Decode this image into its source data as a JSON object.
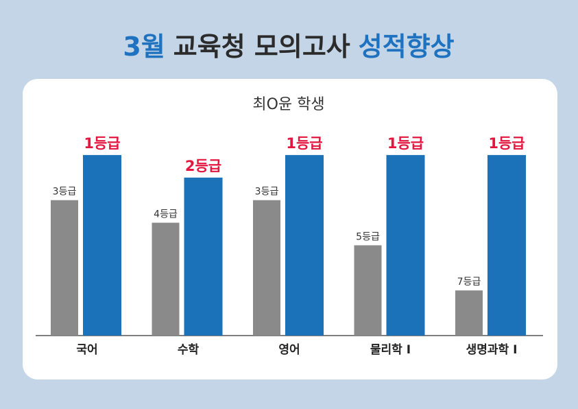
{
  "chart_data": {
    "type": "bar",
    "title": [
      {
        "text": "3월",
        "color": "#1f72bf"
      },
      {
        "text": "교육청 모의고사",
        "color": "#2b2b2b"
      },
      {
        "text": "성적향상",
        "color": "#1f72bf"
      }
    ],
    "subtitle": "최O윤 학생",
    "categories": [
      "국어",
      "수학",
      "영어",
      "물리학 I",
      "생명과학 I"
    ],
    "series": [
      {
        "color": "#8a8a8a",
        "values": [
          3,
          4,
          3,
          5,
          7
        ],
        "value_labels": [
          "3등급",
          "4등급",
          "3등급",
          "5등급",
          "7등급"
        ],
        "label_color": "#333333"
      },
      {
        "color": "#1b72b9",
        "values": [
          1,
          2,
          1,
          1,
          1
        ],
        "value_labels": [
          "1등급",
          "2등급",
          "1등급",
          "1등급",
          "1등급"
        ],
        "label_color": "#e3163f"
      }
    ],
    "ylim": [
      9,
      0
    ]
  }
}
